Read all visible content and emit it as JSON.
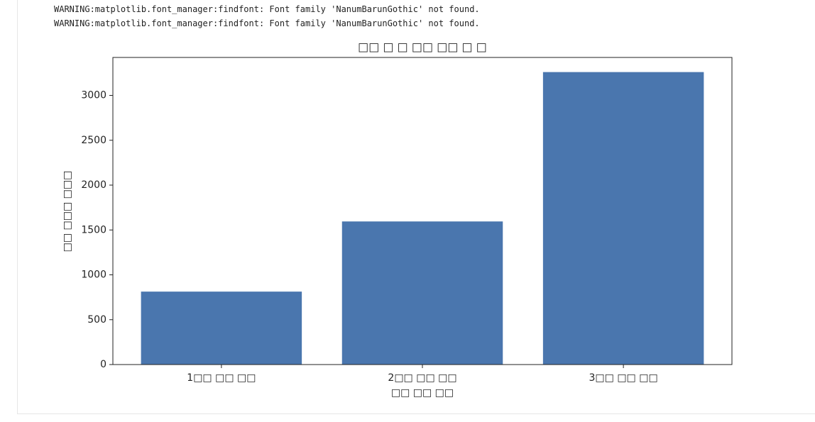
{
  "warnings": [
    "WARNING:matplotlib.font_manager:findfont: Font family 'NanumBarunGothic' not found.",
    "WARNING:matplotlib.font_manager:findfont: Font family 'NanumBarunGothic' not found."
  ],
  "chart_data": {
    "type": "bar",
    "title": "□□ □ □ □□ □□ □ □",
    "xlabel": "□□ □□ □□",
    "ylabel": "□□ □□□ □□□",
    "categories": [
      "1□□ □□ □□",
      "2□□ □□ □□",
      "3□□ □□ □□"
    ],
    "values": [
      813,
      1595,
      3260
    ],
    "color": "#4a76ae",
    "ylim": [
      0,
      3423
    ],
    "yticks": [
      0,
      500,
      1000,
      1500,
      2000,
      2500,
      3000
    ]
  }
}
